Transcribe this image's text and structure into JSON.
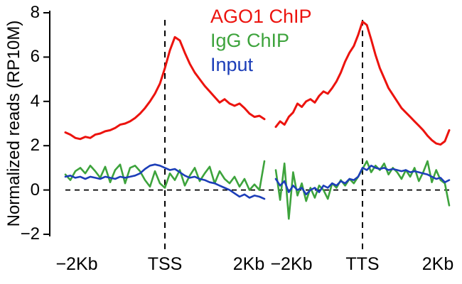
{
  "chart_data": {
    "type": "line",
    "title": "",
    "ylabel": "Normalized reads (RP10M)",
    "ylim": [
      -2,
      8
    ],
    "yticks": [
      8,
      6,
      4,
      2,
      0,
      -2
    ],
    "ytick_labels": [
      "8",
      "6",
      "4",
      "2",
      "0",
      "−2"
    ],
    "grid": false,
    "legend_position": "top-center",
    "legend": [
      {
        "label": "AGO1 ChIP",
        "color": "#ec130e"
      },
      {
        "label": "IgG ChIP",
        "color": "#3da33c"
      },
      {
        "label": "Input",
        "color": "#1c3eb8"
      }
    ],
    "reference_lines": {
      "horizontal_y": 0,
      "vertical_at": [
        "TSS",
        "TTS"
      ],
      "style": "dashed",
      "color": "#000000"
    },
    "panels": [
      {
        "center_label": "TSS",
        "xticks": [
          "−2Kb",
          "TSS",
          "2Kb"
        ],
        "x_start_kb": -2,
        "x_end_kb": 2,
        "x_step_kb": 0.1,
        "series": [
          {
            "name": "IgG ChIP",
            "color": "#3da33c",
            "values": [
              0.7,
              0.45,
              0.85,
              1.0,
              0.75,
              1.1,
              0.85,
              0.55,
              1.05,
              0.35,
              0.9,
              1.15,
              0.3,
              1.0,
              1.1,
              0.85,
              0.45,
              0.15,
              0.85,
              0.3,
              0.1,
              0.75,
              0.45,
              0.9,
              0.2,
              0.65,
              1.0,
              0.4,
              0.75,
              1.05,
              0.3,
              0.85,
              0.5,
              0.3,
              0.6,
              0.15,
              0.5,
              0.0,
              0.25,
              0.0,
              1.3
            ]
          },
          {
            "name": "Input",
            "color": "#1c3eb8",
            "values": [
              0.6,
              0.65,
              0.55,
              0.6,
              0.5,
              0.6,
              0.55,
              0.5,
              0.6,
              0.55,
              0.5,
              0.6,
              0.55,
              0.6,
              0.65,
              0.75,
              0.95,
              1.1,
              1.15,
              1.1,
              1.0,
              0.9,
              0.95,
              0.8,
              0.65,
              0.55,
              0.6,
              0.5,
              0.45,
              0.35,
              0.3,
              0.2,
              0.1,
              0.0,
              -0.15,
              -0.3,
              -0.2,
              -0.35,
              -0.25,
              -0.3,
              -0.4
            ]
          },
          {
            "name": "AGO1 ChIP",
            "color": "#ec130e",
            "values": [
              2.6,
              2.5,
              2.35,
              2.3,
              2.4,
              2.35,
              2.5,
              2.55,
              2.65,
              2.7,
              2.8,
              2.95,
              3.0,
              3.1,
              3.25,
              3.45,
              3.7,
              4.0,
              4.35,
              4.8,
              5.5,
              6.3,
              6.9,
              6.75,
              6.2,
              5.7,
              5.3,
              5.0,
              4.7,
              4.45,
              4.2,
              3.95,
              4.1,
              3.9,
              3.8,
              3.9,
              3.7,
              3.45,
              3.3,
              3.35,
              3.2
            ]
          }
        ]
      },
      {
        "center_label": "TTS",
        "xticks": [
          "−2Kb",
          "TTS",
          "2Kb"
        ],
        "x_start_kb": -2,
        "x_end_kb": 2,
        "x_step_kb": 0.1,
        "series": [
          {
            "name": "IgG ChIP",
            "color": "#3da33c",
            "values": [
              0.9,
              -0.45,
              1.2,
              -1.3,
              0.8,
              -0.25,
              0.3,
              -0.5,
              0.1,
              -0.35,
              0.2,
              0.0,
              -0.4,
              0.3,
              0.1,
              0.45,
              0.2,
              0.5,
              0.3,
              0.6,
              0.95,
              1.3,
              0.8,
              1.1,
              0.9,
              1.2,
              0.7,
              1.0,
              0.8,
              0.5,
              0.9,
              0.6,
              1.0,
              0.4,
              0.8,
              1.3,
              0.35,
              0.9,
              0.45,
              0.3,
              -0.7
            ]
          },
          {
            "name": "Input",
            "color": "#1c3eb8",
            "values": [
              0.5,
              0.2,
              0.4,
              -0.1,
              0.2,
              0.0,
              0.1,
              -0.2,
              0.0,
              0.1,
              -0.1,
              0.2,
              0.1,
              0.3,
              0.2,
              0.4,
              0.3,
              0.5,
              0.45,
              0.6,
              1.0,
              0.9,
              1.1,
              1.0,
              0.95,
              1.0,
              0.9,
              0.95,
              0.9,
              0.85,
              0.9,
              0.8,
              0.85,
              0.8,
              0.75,
              0.7,
              0.6,
              0.5,
              0.55,
              0.35,
              0.45
            ]
          },
          {
            "name": "AGO1 ChIP",
            "color": "#ec130e",
            "values": [
              2.85,
              3.1,
              2.95,
              3.3,
              3.5,
              3.9,
              3.75,
              4.0,
              4.1,
              3.95,
              4.25,
              4.45,
              4.35,
              4.6,
              4.9,
              5.3,
              5.8,
              6.2,
              6.5,
              7.0,
              7.6,
              7.45,
              6.8,
              6.1,
              5.5,
              5.05,
              4.6,
              4.3,
              4.0,
              3.7,
              3.5,
              3.3,
              3.1,
              2.9,
              2.7,
              2.45,
              2.25,
              2.1,
              2.05,
              2.2,
              2.7
            ]
          }
        ]
      }
    ]
  }
}
